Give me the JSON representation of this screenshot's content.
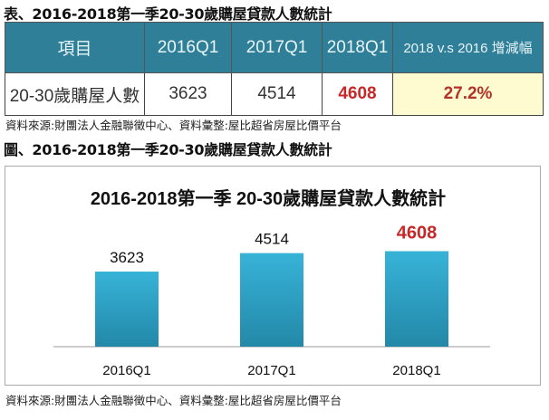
{
  "table_title": "表、2016-2018第一季20-30歲購屋貸款人數統計",
  "table": {
    "headers": [
      "項目",
      "2016Q1",
      "2017Q1",
      "2018Q1",
      "2018 v.s 2016 增減幅"
    ],
    "row": [
      "20-30歲購屋人數",
      "3623",
      "4514",
      "4608",
      "27.2%"
    ]
  },
  "source_note": "資料來源:財團法人金融聯徵中心、資料彙整:屋比超省房屋比價平台",
  "figure_title": "圖、2016-2018第一季20-30歲購屋貸款人數統計",
  "colors": {
    "header_bg": "#2f7f98",
    "bar": "#2fa6c9",
    "highlight": "#c62828",
    "highlight_cell_bg": "#fdfbcf"
  },
  "chart_data": {
    "type": "bar",
    "title": "2016-2018第一季 20-30歲購屋貸款人數統計",
    "categories": [
      "2016Q1",
      "2017Q1",
      "2018Q1"
    ],
    "values": [
      3623,
      4514,
      4608
    ],
    "data_labels": [
      "3623",
      "4514",
      "4608"
    ],
    "highlighted_category": "2018Q1",
    "xlabel": "",
    "ylabel": "",
    "grid": false,
    "legend": "none"
  }
}
